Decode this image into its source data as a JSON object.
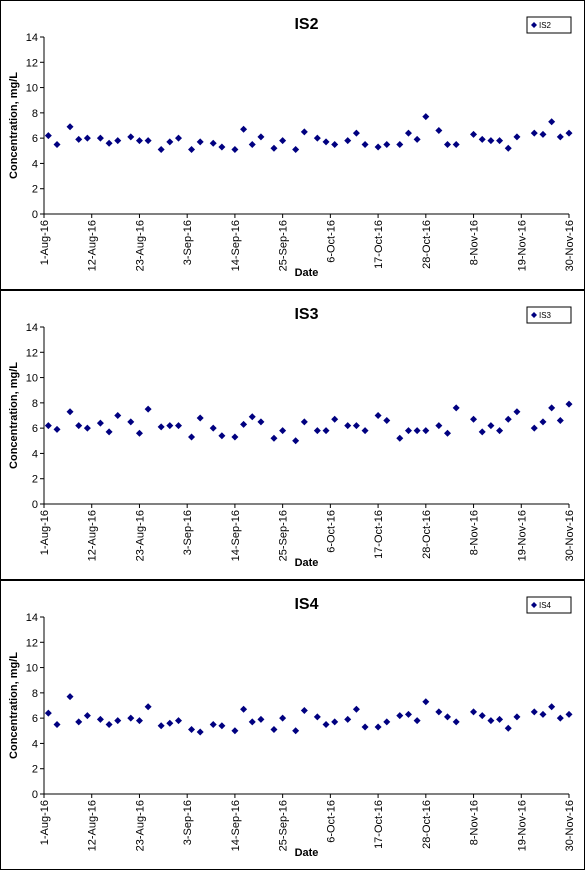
{
  "chart_data": [
    {
      "type": "scatter",
      "title": "IS2",
      "xlabel": "Date",
      "ylabel": "Concentration, mg/L",
      "legend": "upper right",
      "x": [
        "2016-08-02",
        "2016-08-04",
        "2016-08-07",
        "2016-08-09",
        "2016-08-11",
        "2016-08-14",
        "2016-08-16",
        "2016-08-18",
        "2016-08-21",
        "2016-08-23",
        "2016-08-25",
        "2016-08-28",
        "2016-08-30",
        "2016-09-01",
        "2016-09-04",
        "2016-09-06",
        "2016-09-09",
        "2016-09-11",
        "2016-09-14",
        "2016-09-16",
        "2016-09-18",
        "2016-09-20",
        "2016-09-23",
        "2016-09-25",
        "2016-09-28",
        "2016-09-30",
        "2016-10-03",
        "2016-10-05",
        "2016-10-07",
        "2016-10-10",
        "2016-10-12",
        "2016-10-14",
        "2016-10-17",
        "2016-10-19",
        "2016-10-22",
        "2016-10-24",
        "2016-10-26",
        "2016-10-28",
        "2016-10-31",
        "2016-11-02",
        "2016-11-04",
        "2016-11-08",
        "2016-11-10",
        "2016-11-12",
        "2016-11-14",
        "2016-11-16",
        "2016-11-18",
        "2016-11-22",
        "2016-11-24",
        "2016-11-26",
        "2016-11-28",
        "2016-11-30"
      ],
      "series": [
        {
          "name": "IS2",
          "color": "#000080",
          "values": [
            6.2,
            5.5,
            6.9,
            5.9,
            6.0,
            6.0,
            5.6,
            5.8,
            6.1,
            5.8,
            5.8,
            5.1,
            5.7,
            6.0,
            5.1,
            5.7,
            5.6,
            5.3,
            5.1,
            6.7,
            5.5,
            6.1,
            5.2,
            5.8,
            5.1,
            6.5,
            6.0,
            5.7,
            5.5,
            5.8,
            6.4,
            5.5,
            5.3,
            5.5,
            5.5,
            6.4,
            5.9,
            7.7,
            6.6,
            5.5,
            5.5,
            6.3,
            5.9,
            5.8,
            5.8,
            5.2,
            6.1,
            6.4,
            6.3,
            7.3,
            6.1,
            6.4
          ]
        }
      ],
      "xlim": [
        "2016-08-01",
        "2016-11-30"
      ],
      "xticks": [
        {
          "value": "2016-08-01",
          "label": "1-Aug-16"
        },
        {
          "value": "2016-08-12",
          "label": "12-Aug-16"
        },
        {
          "value": "2016-08-23",
          "label": "23-Aug-16"
        },
        {
          "value": "2016-09-03",
          "label": "3-Sep-16"
        },
        {
          "value": "2016-09-14",
          "label": "14-Sep-16"
        },
        {
          "value": "2016-09-25",
          "label": "25-Sep-16"
        },
        {
          "value": "2016-10-06",
          "label": "6-Oct-16"
        },
        {
          "value": "2016-10-17",
          "label": "17-Oct-16"
        },
        {
          "value": "2016-10-28",
          "label": "28-Oct-16"
        },
        {
          "value": "2016-11-08",
          "label": "8-Nov-16"
        },
        {
          "value": "2016-11-19",
          "label": "19-Nov-16"
        },
        {
          "value": "2016-11-30",
          "label": "30-Nov-16"
        }
      ],
      "ylim": [
        0,
        14
      ],
      "yticks": [
        0,
        2,
        4,
        6,
        8,
        10,
        12,
        14
      ]
    },
    {
      "type": "scatter",
      "title": "IS3",
      "xlabel": "Date",
      "ylabel": "Concentration, mg/L",
      "legend": "upper right",
      "x": [
        "2016-08-02",
        "2016-08-04",
        "2016-08-07",
        "2016-08-09",
        "2016-08-11",
        "2016-08-14",
        "2016-08-16",
        "2016-08-18",
        "2016-08-21",
        "2016-08-23",
        "2016-08-25",
        "2016-08-28",
        "2016-08-30",
        "2016-09-01",
        "2016-09-04",
        "2016-09-06",
        "2016-09-09",
        "2016-09-11",
        "2016-09-14",
        "2016-09-16",
        "2016-09-18",
        "2016-09-20",
        "2016-09-23",
        "2016-09-25",
        "2016-09-28",
        "2016-09-30",
        "2016-10-03",
        "2016-10-05",
        "2016-10-07",
        "2016-10-10",
        "2016-10-12",
        "2016-10-14",
        "2016-10-17",
        "2016-10-19",
        "2016-10-22",
        "2016-10-24",
        "2016-10-26",
        "2016-10-28",
        "2016-10-31",
        "2016-11-02",
        "2016-11-04",
        "2016-11-08",
        "2016-11-10",
        "2016-11-12",
        "2016-11-14",
        "2016-11-16",
        "2016-11-18",
        "2016-11-22",
        "2016-11-24",
        "2016-11-26",
        "2016-11-28",
        "2016-11-30"
      ],
      "series": [
        {
          "name": "IS3",
          "color": "#000080",
          "values": [
            6.2,
            5.9,
            7.3,
            6.2,
            6.0,
            6.4,
            5.7,
            7.0,
            6.5,
            5.6,
            7.5,
            6.1,
            6.2,
            6.2,
            5.3,
            6.8,
            6.0,
            5.4,
            5.3,
            6.3,
            6.9,
            6.5,
            5.2,
            5.8,
            5.0,
            6.5,
            5.8,
            5.8,
            6.7,
            6.2,
            6.2,
            5.8,
            7.0,
            6.6,
            5.2,
            5.8,
            5.8,
            5.8,
            6.2,
            5.6,
            7.6,
            6.7,
            5.7,
            6.2,
            5.8,
            6.7,
            7.3,
            6.0,
            6.5,
            7.6,
            6.6,
            7.9
          ]
        }
      ],
      "xlim": [
        "2016-08-01",
        "2016-11-30"
      ],
      "xticks": [
        {
          "value": "2016-08-01",
          "label": "1-Aug-16"
        },
        {
          "value": "2016-08-12",
          "label": "12-Aug-16"
        },
        {
          "value": "2016-08-23",
          "label": "23-Aug-16"
        },
        {
          "value": "2016-09-03",
          "label": "3-Sep-16"
        },
        {
          "value": "2016-09-14",
          "label": "14-Sep-16"
        },
        {
          "value": "2016-09-25",
          "label": "25-Sep-16"
        },
        {
          "value": "2016-10-06",
          "label": "6-Oct-16"
        },
        {
          "value": "2016-10-17",
          "label": "17-Oct-16"
        },
        {
          "value": "2016-10-28",
          "label": "28-Oct-16"
        },
        {
          "value": "2016-11-08",
          "label": "8-Nov-16"
        },
        {
          "value": "2016-11-19",
          "label": "19-Nov-16"
        },
        {
          "value": "2016-11-30",
          "label": "30-Nov-16"
        }
      ],
      "ylim": [
        0,
        14
      ],
      "yticks": [
        0,
        2,
        4,
        6,
        8,
        10,
        12,
        14
      ]
    },
    {
      "type": "scatter",
      "title": "IS4",
      "xlabel": "Date",
      "ylabel": "Concentration, mg/L",
      "legend": "upper right",
      "x": [
        "2016-08-02",
        "2016-08-04",
        "2016-08-07",
        "2016-08-09",
        "2016-08-11",
        "2016-08-14",
        "2016-08-16",
        "2016-08-18",
        "2016-08-21",
        "2016-08-23",
        "2016-08-25",
        "2016-08-28",
        "2016-08-30",
        "2016-09-01",
        "2016-09-04",
        "2016-09-06",
        "2016-09-09",
        "2016-09-11",
        "2016-09-14",
        "2016-09-16",
        "2016-09-18",
        "2016-09-20",
        "2016-09-23",
        "2016-09-25",
        "2016-09-28",
        "2016-09-30",
        "2016-10-03",
        "2016-10-05",
        "2016-10-07",
        "2016-10-10",
        "2016-10-12",
        "2016-10-14",
        "2016-10-17",
        "2016-10-19",
        "2016-10-22",
        "2016-10-24",
        "2016-10-26",
        "2016-10-28",
        "2016-10-31",
        "2016-11-02",
        "2016-11-04",
        "2016-11-08",
        "2016-11-10",
        "2016-11-12",
        "2016-11-14",
        "2016-11-16",
        "2016-11-18",
        "2016-11-22",
        "2016-11-24",
        "2016-11-26",
        "2016-11-28",
        "2016-11-30"
      ],
      "series": [
        {
          "name": "IS4",
          "color": "#000080",
          "values": [
            6.4,
            5.5,
            7.7,
            5.7,
            6.2,
            5.9,
            5.5,
            5.8,
            6.0,
            5.8,
            6.9,
            5.4,
            5.6,
            5.8,
            5.1,
            4.9,
            5.5,
            5.4,
            5.0,
            6.7,
            5.7,
            5.9,
            5.1,
            6.0,
            5.0,
            6.6,
            6.1,
            5.5,
            5.7,
            5.9,
            6.7,
            5.3,
            5.3,
            5.7,
            6.2,
            6.3,
            5.8,
            7.3,
            6.5,
            6.1,
            5.7,
            6.5,
            6.2,
            5.8,
            5.9,
            5.2,
            6.1,
            6.5,
            6.3,
            6.9,
            6.0,
            6.3
          ]
        }
      ],
      "xlim": [
        "2016-08-01",
        "2016-11-30"
      ],
      "xticks": [
        {
          "value": "2016-08-01",
          "label": "1-Aug-16"
        },
        {
          "value": "2016-08-12",
          "label": "12-Aug-16"
        },
        {
          "value": "2016-08-23",
          "label": "23-Aug-16"
        },
        {
          "value": "2016-09-03",
          "label": "3-Sep-16"
        },
        {
          "value": "2016-09-14",
          "label": "14-Sep-16"
        },
        {
          "value": "2016-09-25",
          "label": "25-Sep-16"
        },
        {
          "value": "2016-10-06",
          "label": "6-Oct-16"
        },
        {
          "value": "2016-10-17",
          "label": "17-Oct-16"
        },
        {
          "value": "2016-10-28",
          "label": "28-Oct-16"
        },
        {
          "value": "2016-11-08",
          "label": "8-Nov-16"
        },
        {
          "value": "2016-11-19",
          "label": "19-Nov-16"
        },
        {
          "value": "2016-11-30",
          "label": "30-Nov-16"
        }
      ],
      "ylim": [
        0,
        14
      ],
      "yticks": [
        0,
        2,
        4,
        6,
        8,
        10,
        12,
        14
      ]
    }
  ]
}
